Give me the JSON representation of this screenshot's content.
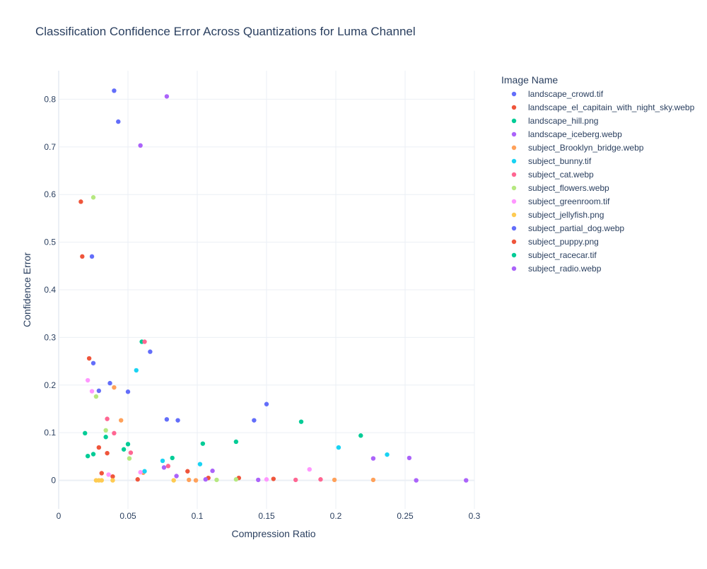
{
  "chart_data": {
    "type": "scatter",
    "title": "Classification Confidence Error Across Quantizations for Luma Channel",
    "xlabel": "Compression Ratio",
    "ylabel": "Confidence Error",
    "xlim": [
      0,
      0.3
    ],
    "ylim": [
      -0.06,
      0.86
    ],
    "x_ticks": [
      0,
      0.05,
      0.1,
      0.15,
      0.2,
      0.25,
      0.3
    ],
    "x_tick_labels": [
      "0",
      "0.05",
      "0.1",
      "0.15",
      "0.2",
      "0.25",
      "0.3"
    ],
    "y_ticks": [
      0,
      0.1,
      0.2,
      0.3,
      0.4,
      0.5,
      0.6,
      0.7,
      0.8
    ],
    "y_tick_labels": [
      "0",
      "0.1",
      "0.2",
      "0.3",
      "0.4",
      "0.5",
      "0.6",
      "0.7",
      "0.8"
    ],
    "grid": true,
    "legend_title": "Image Name",
    "legend_position": "right",
    "series": [
      {
        "name": "landscape_crowd.tif",
        "color": "#636efa",
        "points": [
          [
            0.04,
            0.818
          ],
          [
            0.043,
            0.753
          ],
          [
            0.024,
            0.47
          ],
          [
            0.066,
            0.27
          ],
          [
            0.025,
            0.246
          ],
          [
            0.037,
            0.204
          ],
          [
            0.029,
            0.188
          ],
          [
            0.05,
            0.186
          ],
          [
            0.15,
            0.16
          ],
          [
            0.078,
            0.128
          ],
          [
            0.086,
            0.126
          ],
          [
            0.141,
            0.126
          ]
        ]
      },
      {
        "name": "landscape_el_capitain_with_night_sky.webp",
        "color": "#EF553B",
        "points": [
          [
            0.016,
            0.585
          ],
          [
            0.017,
            0.47
          ],
          [
            0.022,
            0.256
          ],
          [
            0.029,
            0.069
          ],
          [
            0.035,
            0.057
          ],
          [
            0.031,
            0.015
          ],
          [
            0.039,
            0.008
          ],
          [
            0.057,
            0.002
          ],
          [
            0.093,
            0.019
          ],
          [
            0.108,
            0.005
          ],
          [
            0.13,
            0.005
          ],
          [
            0.155,
            0.003
          ]
        ]
      },
      {
        "name": "landscape_hill.png",
        "color": "#00cc96",
        "points": [
          [
            0.06,
            0.291
          ],
          [
            0.175,
            0.123
          ],
          [
            0.019,
            0.099
          ],
          [
            0.218,
            0.094
          ],
          [
            0.034,
            0.091
          ],
          [
            0.128,
            0.081
          ],
          [
            0.104,
            0.077
          ],
          [
            0.05,
            0.076
          ],
          [
            0.047,
            0.065
          ],
          [
            0.025,
            0.055
          ],
          [
            0.021,
            0.051
          ],
          [
            0.082,
            0.047
          ]
        ]
      },
      {
        "name": "landscape_iceberg.webp",
        "color": "#ab63fa",
        "points": [
          [
            0.078,
            0.806
          ],
          [
            0.059,
            0.703
          ],
          [
            0.227,
            0.046
          ],
          [
            0.253,
            0.047
          ],
          [
            0.076,
            0.027
          ],
          [
            0.111,
            0.02
          ],
          [
            0.085,
            0.009
          ],
          [
            0.106,
            0.002
          ],
          [
            0.144,
            0.001
          ],
          [
            0.258,
            0.0
          ],
          [
            0.294,
            0.0
          ]
        ]
      },
      {
        "name": "subject_Brooklyn_bridge.webp",
        "color": "#FFA15A",
        "points": [
          [
            0.04,
            0.195
          ],
          [
            0.045,
            0.126
          ],
          [
            0.061,
            0.016
          ],
          [
            0.094,
            0.001
          ],
          [
            0.099,
            0.0
          ],
          [
            0.199,
            0.001
          ],
          [
            0.227,
            0.001
          ]
        ]
      },
      {
        "name": "subject_bunny.tif",
        "color": "#19d3f3",
        "points": [
          [
            0.056,
            0.231
          ],
          [
            0.237,
            0.054
          ],
          [
            0.202,
            0.069
          ],
          [
            0.075,
            0.041
          ],
          [
            0.102,
            0.034
          ],
          [
            0.062,
            0.019
          ]
        ]
      },
      {
        "name": "subject_cat.webp",
        "color": "#FF6692",
        "points": [
          [
            0.062,
            0.291
          ],
          [
            0.035,
            0.129
          ],
          [
            0.04,
            0.099
          ],
          [
            0.052,
            0.058
          ],
          [
            0.079,
            0.03
          ],
          [
            0.171,
            0.001
          ],
          [
            0.189,
            0.002
          ]
        ]
      },
      {
        "name": "subject_flowers.webp",
        "color": "#B6E880",
        "points": [
          [
            0.025,
            0.594
          ],
          [
            0.027,
            0.176
          ],
          [
            0.034,
            0.105
          ],
          [
            0.051,
            0.046
          ],
          [
            0.114,
            0.001
          ],
          [
            0.128,
            0.002
          ]
        ]
      },
      {
        "name": "subject_greenroom.tif",
        "color": "#FF97FF",
        "points": [
          [
            0.021,
            0.21
          ],
          [
            0.024,
            0.187
          ],
          [
            0.059,
            0.017
          ],
          [
            0.036,
            0.012
          ],
          [
            0.15,
            0.002
          ],
          [
            0.181,
            0.023
          ]
        ]
      },
      {
        "name": "subject_jellyfish.png",
        "color": "#FECB52",
        "points": [
          [
            0.027,
            0.0
          ],
          [
            0.029,
            0.0
          ],
          [
            0.031,
            0.0
          ],
          [
            0.039,
            0.0
          ],
          [
            0.083,
            0.0
          ]
        ]
      },
      {
        "name": "subject_partial_dog.webp",
        "color": "#636efa",
        "points": []
      },
      {
        "name": "subject_puppy.png",
        "color": "#EF553B",
        "points": []
      },
      {
        "name": "subject_racecar.tif",
        "color": "#00cc96",
        "points": []
      },
      {
        "name": "subject_radio.webp",
        "color": "#ab63fa",
        "points": []
      }
    ]
  }
}
